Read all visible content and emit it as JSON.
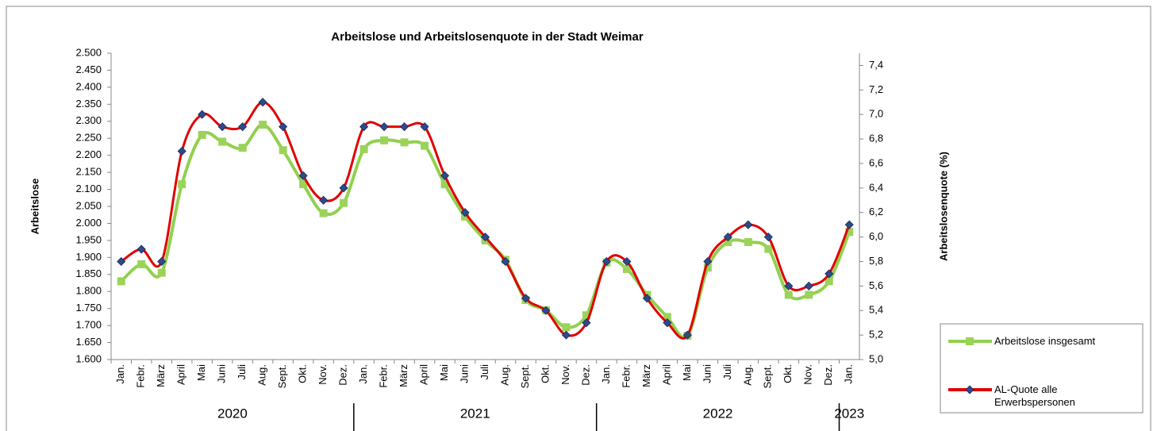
{
  "chart_data": {
    "type": "line",
    "title": "Arbeitslose und Arbeitslosenquote in der Stadt Weimar",
    "y_label": "Arbeitslose",
    "y2_label": "Arbeitslosenquote (%)",
    "categories": [
      "Jan.",
      "Febr.",
      "März",
      "April",
      "Mai",
      "Juni",
      "Juli",
      "Aug.",
      "Sept.",
      "Okt.",
      "Nov.",
      "Dez.",
      "Jan.",
      "Febr.",
      "März",
      "April",
      "Mai",
      "Juni",
      "Juli",
      "Aug.",
      "Sept.",
      "Okt.",
      "Nov.",
      "Dez.",
      "Jan.",
      "Febr.",
      "März",
      "April",
      "Mai",
      "Juni",
      "Juli",
      "Aug.",
      "Sept.",
      "Okt.",
      "Nov.",
      "Dez.",
      "Jan."
    ],
    "groups": [
      {
        "label": "2020",
        "count": 12
      },
      {
        "label": "2021",
        "count": 12
      },
      {
        "label": "2022",
        "count": 12
      },
      {
        "label": "2023",
        "count": 1
      }
    ],
    "ylim": [
      1600,
      2500
    ],
    "yticks": [
      {
        "value": 1600,
        "label": "1.600"
      },
      {
        "value": 1650,
        "label": "1.650"
      },
      {
        "value": 1700,
        "label": "1.700"
      },
      {
        "value": 1750,
        "label": "1.750"
      },
      {
        "value": 1800,
        "label": "1.800"
      },
      {
        "value": 1850,
        "label": "1.850"
      },
      {
        "value": 1900,
        "label": "1.900"
      },
      {
        "value": 1950,
        "label": "1.950"
      },
      {
        "value": 2000,
        "label": "2.000"
      },
      {
        "value": 2050,
        "label": "2.050"
      },
      {
        "value": 2100,
        "label": "2.100"
      },
      {
        "value": 2150,
        "label": "2.150"
      },
      {
        "value": 2200,
        "label": "2.200"
      },
      {
        "value": 2250,
        "label": "2.250"
      },
      {
        "value": 2300,
        "label": "2.300"
      },
      {
        "value": 2350,
        "label": "2.350"
      },
      {
        "value": 2400,
        "label": "2.400"
      },
      {
        "value": 2450,
        "label": "2.450"
      },
      {
        "value": 2500,
        "label": "2.500"
      }
    ],
    "y2lim": [
      5.0,
      7.5
    ],
    "y2ticks": [
      {
        "value": 5.0,
        "label": "5,0"
      },
      {
        "value": 5.2,
        "label": "5,2"
      },
      {
        "value": 5.4,
        "label": "5,4"
      },
      {
        "value": 5.6,
        "label": "5,6"
      },
      {
        "value": 5.8,
        "label": "5,8"
      },
      {
        "value": 6.0,
        "label": "6,0"
      },
      {
        "value": 6.2,
        "label": "6,2"
      },
      {
        "value": 6.4,
        "label": "6,4"
      },
      {
        "value": 6.6,
        "label": "6,6"
      },
      {
        "value": 6.8,
        "label": "6,8"
      },
      {
        "value": 7.0,
        "label": "7,0"
      },
      {
        "value": 7.2,
        "label": "7,2"
      },
      {
        "value": 7.4,
        "label": "7,4"
      }
    ],
    "grid": false,
    "legend": "right",
    "series": [
      {
        "name": "Arbeitslose insgesamt",
        "color": "#92d050",
        "marker": "square",
        "marker_color": "#9bd35a",
        "axis": "y",
        "values": [
          1830,
          1880,
          1855,
          2115,
          2260,
          2240,
          2222,
          2290,
          2215,
          2115,
          2030,
          2060,
          2218,
          2244,
          2238,
          2228,
          2115,
          2020,
          1950,
          1893,
          1775,
          1745,
          1695,
          1730,
          1885,
          1866,
          1790,
          1725,
          1670,
          1870,
          1945,
          1945,
          1925,
          1790,
          1790,
          1830,
          1975
        ]
      },
      {
        "name": "AL-Quote alle Erwerbspersonen",
        "color": "#e00000",
        "marker": "diamond",
        "marker_color": "#2e4a8a",
        "axis": "y2",
        "values": [
          5.8,
          5.9,
          5.8,
          6.7,
          7.0,
          6.9,
          6.9,
          7.1,
          6.9,
          6.5,
          6.3,
          6.4,
          6.9,
          6.9,
          6.9,
          6.9,
          6.5,
          6.2,
          6.0,
          5.8,
          5.5,
          5.4,
          5.2,
          5.3,
          5.8,
          5.8,
          5.5,
          5.3,
          5.2,
          5.8,
          6.0,
          6.1,
          6.0,
          5.6,
          5.6,
          5.7,
          6.1
        ]
      }
    ]
  }
}
